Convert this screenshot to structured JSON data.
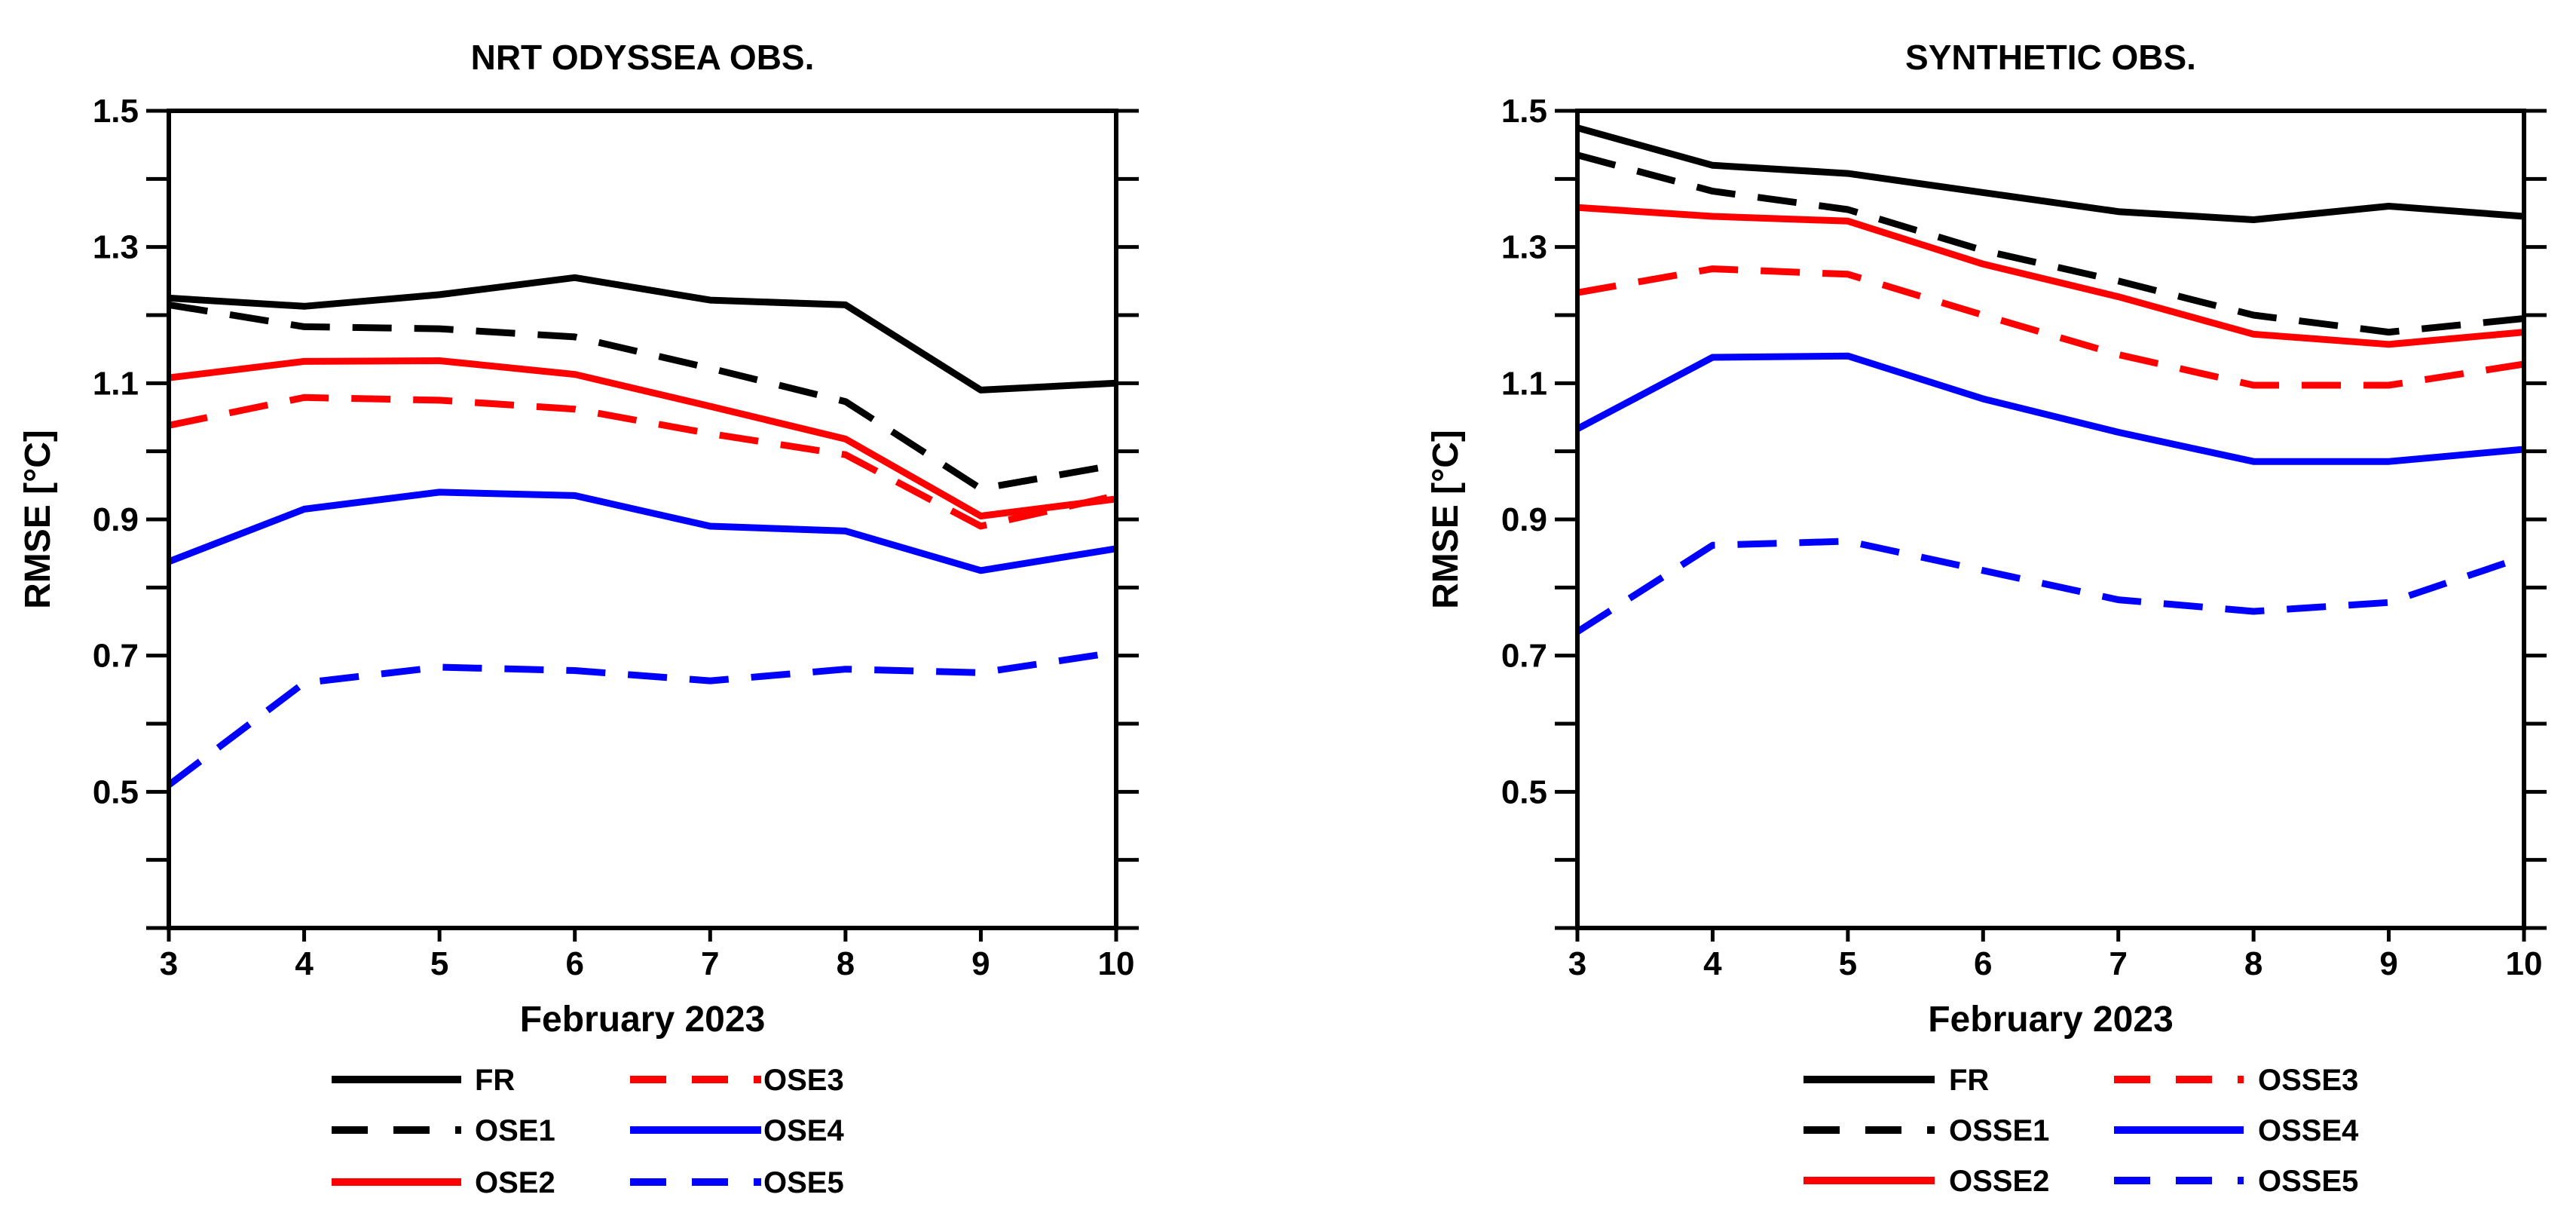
{
  "chart_data": [
    {
      "type": "line",
      "title": "NRT ODYSSEA OBS.",
      "xlabel": "February 2023",
      "ylabel": "RMSE [°C]",
      "x": [
        3,
        4,
        5,
        6,
        7,
        8,
        9,
        10
      ],
      "xlim": [
        3,
        10
      ],
      "ylim": [
        0.3,
        1.5
      ],
      "yticks": [
        0.5,
        0.7,
        0.9,
        1.1,
        1.3,
        1.5
      ],
      "ytick_labels": [
        "0.5",
        "0.7",
        "0.9",
        "1.1",
        "1.3",
        "1.5"
      ],
      "xtick_labels": [
        "3",
        "4",
        "5",
        "6",
        "7",
        "8",
        "9",
        "10"
      ],
      "series": [
        {
          "name": "FR",
          "color": "#000000",
          "style": "solid",
          "values": [
            1.225,
            1.213,
            1.23,
            1.255,
            1.222,
            1.215,
            1.09,
            1.1
          ]
        },
        {
          "name": "OSE1",
          "color": "#000000",
          "style": "dashed",
          "values": [
            1.215,
            1.183,
            1.18,
            1.168,
            1.122,
            1.073,
            0.945,
            0.98
          ]
        },
        {
          "name": "OSE2",
          "color": "#ff0000",
          "style": "solid",
          "values": [
            1.108,
            1.132,
            1.133,
            1.113,
            1.066,
            1.018,
            0.905,
            0.93
          ]
        },
        {
          "name": "OSE3",
          "color": "#ff0000",
          "style": "dashed",
          "values": [
            1.038,
            1.079,
            1.075,
            1.062,
            1.026,
            0.995,
            0.89,
            0.935
          ]
        },
        {
          "name": "OSE4",
          "color": "#0000ff",
          "style": "solid",
          "values": [
            0.838,
            0.915,
            0.94,
            0.935,
            0.89,
            0.883,
            0.825,
            0.857
          ]
        },
        {
          "name": "OSE5",
          "color": "#0000ff",
          "style": "dashed",
          "values": [
            0.51,
            0.66,
            0.683,
            0.678,
            0.663,
            0.68,
            0.675,
            0.705
          ]
        }
      ]
    },
    {
      "type": "line",
      "title": "SYNTHETIC OBS.",
      "xlabel": "February 2023",
      "ylabel": "RMSE [°C]",
      "x": [
        3,
        4,
        5,
        6,
        7,
        8,
        9,
        10
      ],
      "xlim": [
        3,
        10
      ],
      "ylim": [
        0.3,
        1.5
      ],
      "yticks": [
        0.5,
        0.7,
        0.9,
        1.1,
        1.3,
        1.5
      ],
      "ytick_labels": [
        "0.5",
        "0.7",
        "0.9",
        "1.1",
        "1.3",
        "1.5"
      ],
      "xtick_labels": [
        "3",
        "4",
        "5",
        "6",
        "7",
        "8",
        "9",
        "10"
      ],
      "series": [
        {
          "name": "FR",
          "color": "#000000",
          "style": "solid",
          "values": [
            1.475,
            1.42,
            1.408,
            1.38,
            1.352,
            1.34,
            1.36,
            1.345
          ]
        },
        {
          "name": "OSSE1",
          "color": "#000000",
          "style": "dashed",
          "values": [
            1.435,
            1.382,
            1.355,
            1.295,
            1.25,
            1.2,
            1.175,
            1.195
          ]
        },
        {
          "name": "OSSE2",
          "color": "#ff0000",
          "style": "solid",
          "values": [
            1.358,
            1.345,
            1.338,
            1.275,
            1.227,
            1.172,
            1.157,
            1.175
          ]
        },
        {
          "name": "OSSE3",
          "color": "#ff0000",
          "style": "dashed",
          "values": [
            1.233,
            1.268,
            1.26,
            1.2,
            1.142,
            1.097,
            1.097,
            1.128
          ]
        },
        {
          "name": "OSSE4",
          "color": "#0000ff",
          "style": "solid",
          "values": [
            1.033,
            1.138,
            1.14,
            1.077,
            1.028,
            0.985,
            0.985,
            1.003
          ]
        },
        {
          "name": "OSSE5",
          "color": "#0000ff",
          "style": "dashed",
          "values": [
            0.735,
            0.862,
            0.868,
            0.825,
            0.782,
            0.765,
            0.778,
            0.845
          ]
        }
      ]
    }
  ]
}
